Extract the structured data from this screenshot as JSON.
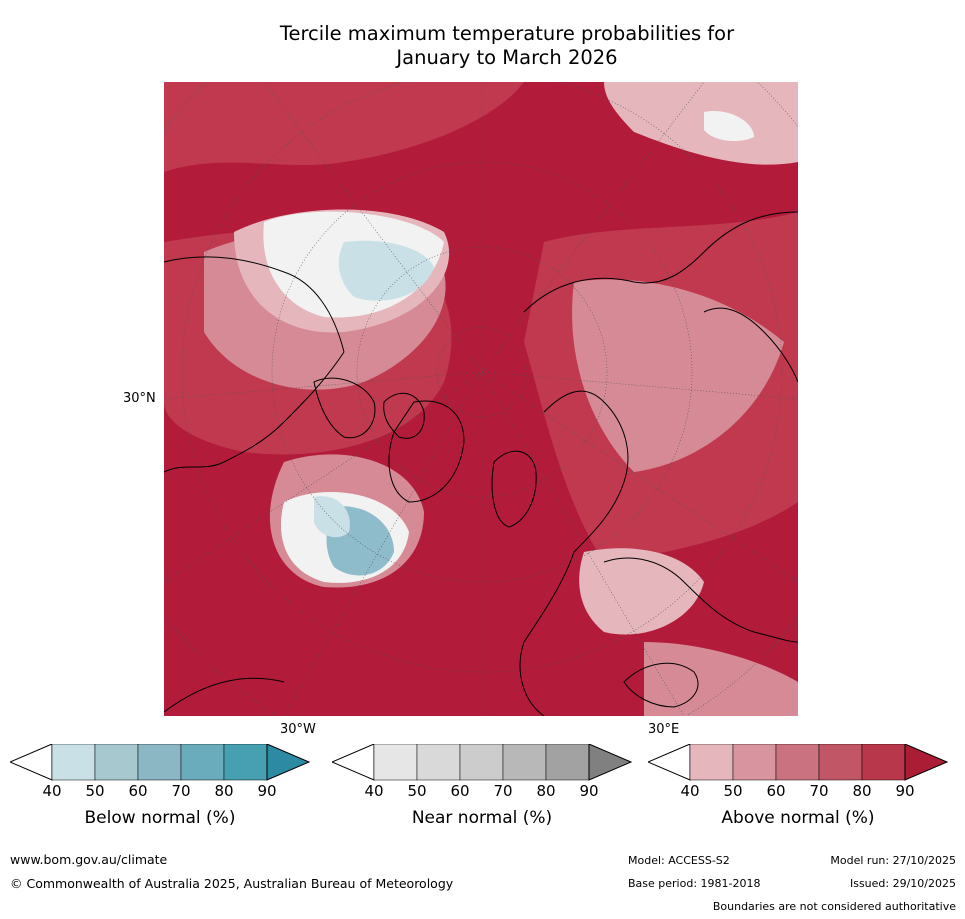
{
  "title_line1": "Tercile maximum temperature probabilities for",
  "title_line2": "January to March 2026",
  "map": {
    "lat_label": "30°N",
    "lon_labels": [
      "30°W",
      "30°E"
    ],
    "colors": {
      "above_dark": "#b21b3a",
      "above_mid": "#c0394f",
      "above_light": "#d68a96",
      "above_pale": "#e5b7bd",
      "below_light": "#c8e0e6",
      "below_mid": "#8fbccb",
      "near_light": "#e6e6e6"
    }
  },
  "colorbars": [
    {
      "label": "Below normal (%)",
      "ticks": [
        "40",
        "50",
        "60",
        "70",
        "80",
        "90"
      ],
      "colors": [
        "#ffffff",
        "#c8e0e6",
        "#a6c8ce",
        "#8ab7c3",
        "#6aacbb",
        "#47a0b1",
        "#2c8ba2"
      ]
    },
    {
      "label": "Near normal (%)",
      "ticks": [
        "40",
        "50",
        "60",
        "70",
        "80",
        "90"
      ],
      "colors": [
        "#ffffff",
        "#e6e6e6",
        "#d9d9d9",
        "#cccccc",
        "#b8b8b8",
        "#a2a2a2",
        "#808080"
      ]
    },
    {
      "label": "Above normal (%)",
      "ticks": [
        "40",
        "50",
        "60",
        "70",
        "80",
        "90"
      ],
      "colors": [
        "#ffffff",
        "#e5b7bd",
        "#d8959f",
        "#cb7280",
        "#c15666",
        "#b9374b",
        "#aa1d34"
      ]
    }
  ],
  "footer": {
    "website": "www.bom.gov.au/climate",
    "copyright": "© Commonwealth of Australia 2025, Australian Bureau of Meteorology",
    "model": "Model: ACCESS-S2",
    "model_run": "Model run: 27/10/2025",
    "base_period": "Base period: 1981-2018",
    "issued": "Issued: 29/10/2025",
    "disclaimer": "Boundaries are not considered authoritative"
  }
}
